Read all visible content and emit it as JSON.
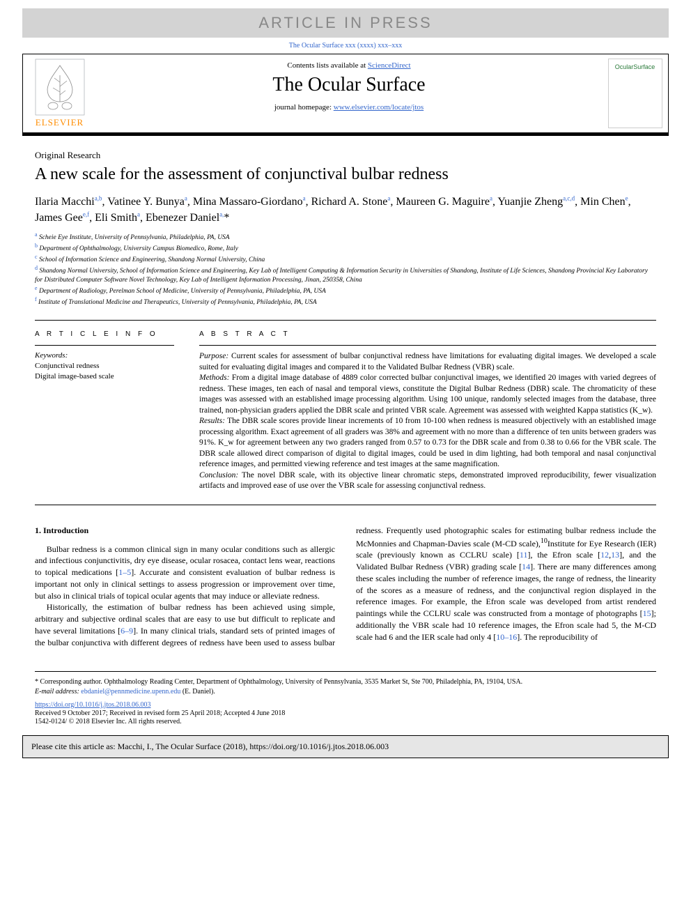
{
  "banner": "ARTICLE IN PRESS",
  "journal_ref_top": "The Ocular Surface xxx (xxxx) xxx–xxx",
  "header": {
    "contents_prefix": "Contents lists available at ",
    "contents_link": "ScienceDirect",
    "journal_title": "The Ocular Surface",
    "homepage_prefix": "journal homepage: ",
    "homepage_url": "www.elsevier.com/locate/jtos",
    "elsevier_label": "ELSEVIER",
    "cover_label": "OcularSurface"
  },
  "article_type": "Original Research",
  "title": "A new scale for the assessment of conjunctival bulbar redness",
  "authors_html": "Ilaria Macchi<sup>a,b</sup>, Vatinee Y. Bunya<sup>a</sup>, Mina Massaro-Giordano<sup>a</sup>, Richard A. Stone<sup>a</sup>, Maureen G. Maguire<sup>a</sup>, Yuanjie Zheng<sup>a,c,d</sup>, Min Chen<sup>e</sup>, James Gee<sup>e,f</sup>, Eli Smith<sup>a</sup>, Ebenezer Daniel<sup>a,</sup>*",
  "affiliations": [
    {
      "key": "a",
      "text": "Scheie Eye Institute, University of Pennsylvania, Philadelphia, PA, USA"
    },
    {
      "key": "b",
      "text": "Department of Ophthalmology, University Campus Biomedico, Rome, Italy"
    },
    {
      "key": "c",
      "text": "School of Information Science and Engineering, Shandong Normal University, China"
    },
    {
      "key": "d",
      "text": "Shandong Normal University, School of Information Science and Engineering, Key Lab of Intelligent Computing & Information Security in Universities of Shandong, Institute of Life Sciences, Shandong Provincial Key Laboratory for Distributed Computer Software Novel Technology, Key Lab of Intelligent Information Processing, Jinan, 250358, China"
    },
    {
      "key": "e",
      "text": "Department of Radiology, Perelman School of Medicine, University of Pennsylvania, Philadelphia, PA, USA"
    },
    {
      "key": "f",
      "text": "Institute of Translational Medicine and Therapeutics, University of Pennsylvania, Philadelphia, PA, USA"
    }
  ],
  "article_info_heading": "A R T I C L E  I N F O",
  "abstract_heading": "A B S T R A C T",
  "keywords_label": "Keywords:",
  "keywords": [
    "Conjunctival redness",
    "Digital image-based scale"
  ],
  "abstract": {
    "purpose_label": "Purpose:",
    "purpose": " Current scales for assessment of bulbar conjunctival redness have limitations for evaluating digital images. We developed a scale suited for evaluating digital images and compared it to the Validated Bulbar Redness (VBR) scale.",
    "methods_label": "Methods:",
    "methods": " From a digital image database of 4889 color corrected bulbar conjunctival images, we identified 20 images with varied degrees of redness. These images, ten each of nasal and temporal views, constitute the Digital Bulbar Redness (DBR) scale. The chromaticity of these images was assessed with an established image processing algorithm. Using 100 unique, randomly selected images from the database, three trained, non-physician graders applied the DBR scale and printed VBR scale. Agreement was assessed with weighted Kappa statistics (K_w).",
    "results_label": "Results:",
    "results": " The DBR scale scores provide linear increments of 10 from 10-100 when redness is measured objectively with an established image processing algorithm. Exact agreement of all graders was 38% and agreement with no more than a difference of ten units between graders was 91%. K_w for agreement between any two graders ranged from 0.57 to 0.73 for the DBR scale and from 0.38 to 0.66 for the VBR scale. The DBR scale allowed direct comparison of digital to digital images, could be used in dim lighting, had both temporal and nasal conjunctival reference images, and permitted viewing reference and test images at the same magnification.",
    "conclusion_label": "Conclusion:",
    "conclusion": " The novel DBR scale, with its objective linear chromatic steps, demonstrated improved reproducibility, fewer visualization artifacts and improved ease of use over the VBR scale for assessing conjunctival redness."
  },
  "intro_heading": "1. Introduction",
  "intro_p1a": "Bulbar redness is a common clinical sign in many ocular conditions such as allergic and infectious conjunctivitis, dry eye disease, ocular rosacea, contact lens wear, reactions to topical medications [",
  "intro_ref1": "1–5",
  "intro_p1b": "]. Accurate and consistent evaluation of bulbar redness is important not only in clinical settings to assess progression or improvement over time, but also in clinical trials of topical ocular agents that may induce or alleviate redness.",
  "intro_p2a": "Historically, the estimation of bulbar redness has been achieved using simple, arbitrary and subjective ordinal scales that are easy to use but difficult to replicate and have several limitations [",
  "intro_ref2": "6–9",
  "intro_p2b": "]. In many clinical trials, standard sets of printed images of the bulbar conjunctiva with different degrees of redness have been used to assess bulbar redness. Frequently used photographic scales for estimating bulbar redness include the McMonnies and Chapman-Davies scale (M-CD scale),",
  "intro_ref_sup10": "10",
  "intro_p2c": "Institute for Eye Research (IER) scale (previously known as CCLRU scale) [",
  "intro_ref3": "11",
  "intro_p2d": "], the Efron scale [",
  "intro_ref4": "12",
  "intro_comma": ",",
  "intro_ref5": "13",
  "intro_p2e": "], and the Validated Bulbar Redness (VBR) grading scale [",
  "intro_ref6": "14",
  "intro_p2f": "]. There are many differences among these scales including the number of reference images, the range of redness, the linearity of the scores as a measure of redness, and the conjunctival region displayed in the reference images. For example, the Efron scale was developed from artist rendered paintings while the CCLRU scale was constructed from a montage of photographs [",
  "intro_ref7": "15",
  "intro_p2g": "]; additionally the VBR scale had 10 reference images, the Efron scale had 5, the M-CD scale had 6 and the IER scale had only 4 [",
  "intro_ref8": "10–16",
  "intro_p2h": "]. The reproducibility of",
  "corresponding": "* Corresponding author. Ophthalmology Reading Center, Department of Ophthalmology, University of Pennsylvania, 3535 Market St, Ste 700, Philadelphia, PA, 19104, USA.",
  "email_label": "E-mail address: ",
  "email": "ebdaniel@pennmedicine.upenn.edu",
  "email_suffix": " (E. Daniel).",
  "doi_url": "https://doi.org/10.1016/j.jtos.2018.06.003",
  "dates": "Received 9 October 2017; Received in revised form 25 April 2018; Accepted 4 June 2018",
  "copyright": "1542-0124/ © 2018 Elsevier Inc. All rights reserved.",
  "cite_box": "Please cite this article as: Macchi, I., The Ocular Surface (2018), https://doi.org/10.1016/j.jtos.2018.06.003",
  "colors": {
    "banner_bg": "#d3d3d3",
    "banner_text": "#888888",
    "link": "#3366cc",
    "elsevier_orange": "#ff8c00",
    "cite_bg": "#e6e6e6"
  }
}
